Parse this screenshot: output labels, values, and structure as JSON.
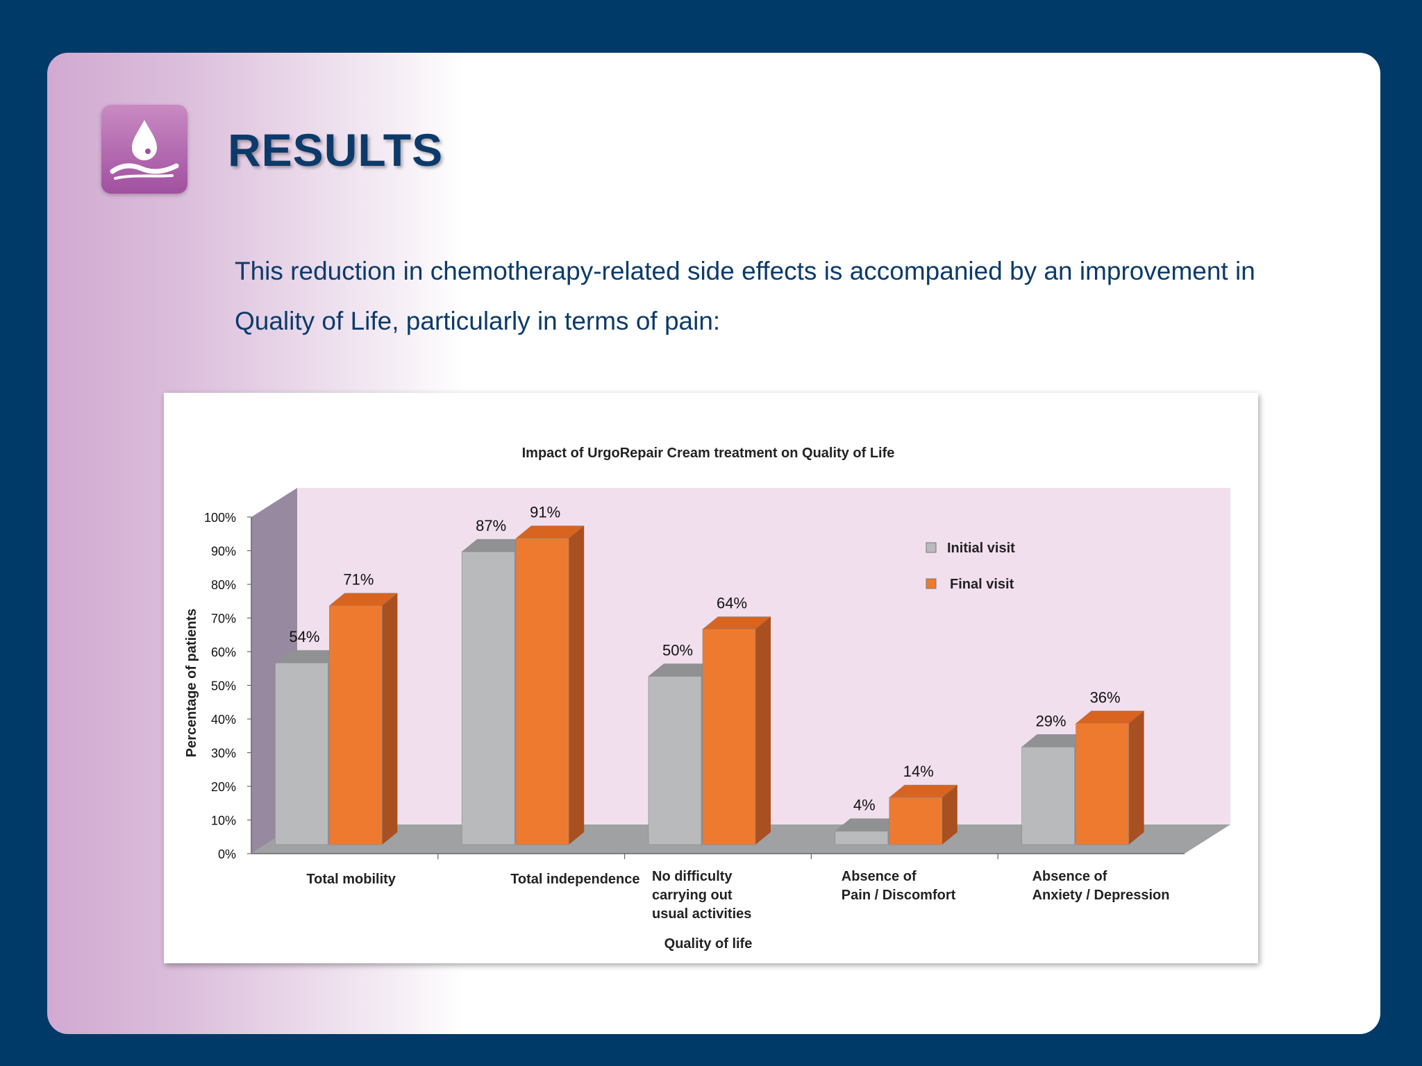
{
  "slide": {
    "title": "RESULTS",
    "intro": "This reduction in chemotherapy-related side effects is accompanied by an improvement in Quality of Life, particularly in terms of pain:"
  },
  "colors": {
    "background": "#003a68",
    "title": "#0c3a6a",
    "initial": "#b9babc",
    "final": "#ee7a30",
    "plot_area": "#f1dfee"
  },
  "chart_data": {
    "type": "bar",
    "title": "Impact of UrgoRepair Cream treatment on Quality of Life",
    "xlabel": "Quality of life",
    "ylabel": "Percentage of patients",
    "ylim": [
      0,
      100
    ],
    "yticks": [
      "0%",
      "10%",
      "20%",
      "30%",
      "40%",
      "50%",
      "60%",
      "70%",
      "80%",
      "90%",
      "100%"
    ],
    "categories": [
      [
        "Total mobility"
      ],
      [
        "Total independence"
      ],
      [
        "No difficulty",
        "carrying out",
        "usual activities"
      ],
      [
        "Absence of",
        "Pain / Discomfort"
      ],
      [
        "Absence of",
        "Anxiety / Depression"
      ]
    ],
    "series": [
      {
        "name": "Initial visit",
        "values": [
          54,
          87,
          50,
          4,
          29
        ],
        "labels": [
          "54%",
          "87%",
          "50%",
          "4%",
          "29%"
        ]
      },
      {
        "name": "Final visit",
        "values": [
          71,
          91,
          64,
          14,
          36
        ],
        "labels": [
          "71%",
          "91%",
          "64%",
          "14%",
          "36%"
        ]
      }
    ],
    "legend_position": "top-right"
  }
}
